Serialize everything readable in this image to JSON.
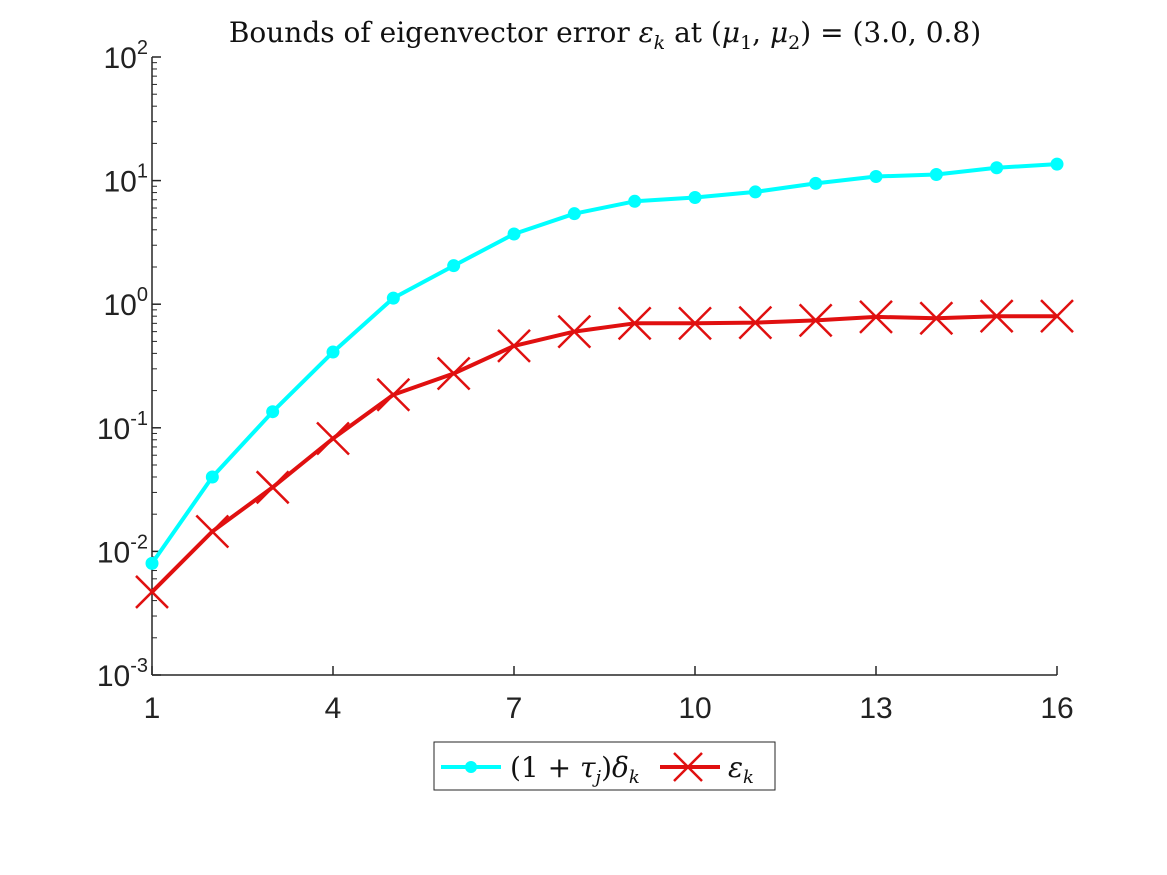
{
  "chart_data": {
    "type": "line",
    "title": "Bounds of eigenvector error εk at (μ1, μ2) = (3.0, 0.8)",
    "title_parts": {
      "prefix": "Bounds of eigenvector error ",
      "var": "ε",
      "var_sub": "k",
      "mid": " at (",
      "mu1": "μ",
      "mu1_sub": "1",
      "comma": ", ",
      "mu2": "μ",
      "mu2_sub": "2",
      "suffix": ") = (3.0, 0.8)"
    },
    "xlabel": "",
    "ylabel": "",
    "x": [
      1,
      2,
      3,
      4,
      5,
      6,
      7,
      8,
      9,
      10,
      11,
      12,
      13,
      14,
      15,
      16
    ],
    "xlim": [
      1,
      16
    ],
    "xticks": [
      "1",
      "4",
      "7",
      "10",
      "13",
      "16"
    ],
    "y_scale": "log",
    "ylim": [
      0.001,
      100
    ],
    "yticks": [
      {
        "base": "10",
        "exp": "-3"
      },
      {
        "base": "10",
        "exp": "-2"
      },
      {
        "base": "10",
        "exp": "-1"
      },
      {
        "base": "10",
        "exp": "0"
      },
      {
        "base": "10",
        "exp": "1"
      },
      {
        "base": "10",
        "exp": "2"
      }
    ],
    "grid": false,
    "legend_position": "bottom-center",
    "series": [
      {
        "name": "(1 + τj)δk",
        "legend_parts": {
          "open": "(1 + ",
          "tau": "τ",
          "tau_sub": "j",
          "close": ")",
          "delta": "δ",
          "delta_sub": "k"
        },
        "color": "#00FFFF",
        "marker": "circle",
        "values": [
          0.008,
          0.04,
          0.135,
          0.41,
          1.12,
          2.05,
          3.7,
          5.4,
          6.8,
          7.3,
          8.1,
          9.5,
          10.8,
          11.2,
          12.7,
          13.6
        ]
      },
      {
        "name": "εk",
        "legend_parts": {
          "eps": "ε",
          "eps_sub": "k"
        },
        "color": "#E01010",
        "marker": "x",
        "values": [
          0.0047,
          0.0145,
          0.033,
          0.082,
          0.185,
          0.275,
          0.46,
          0.6,
          0.7,
          0.7,
          0.71,
          0.74,
          0.79,
          0.77,
          0.8,
          0.8
        ]
      }
    ]
  }
}
